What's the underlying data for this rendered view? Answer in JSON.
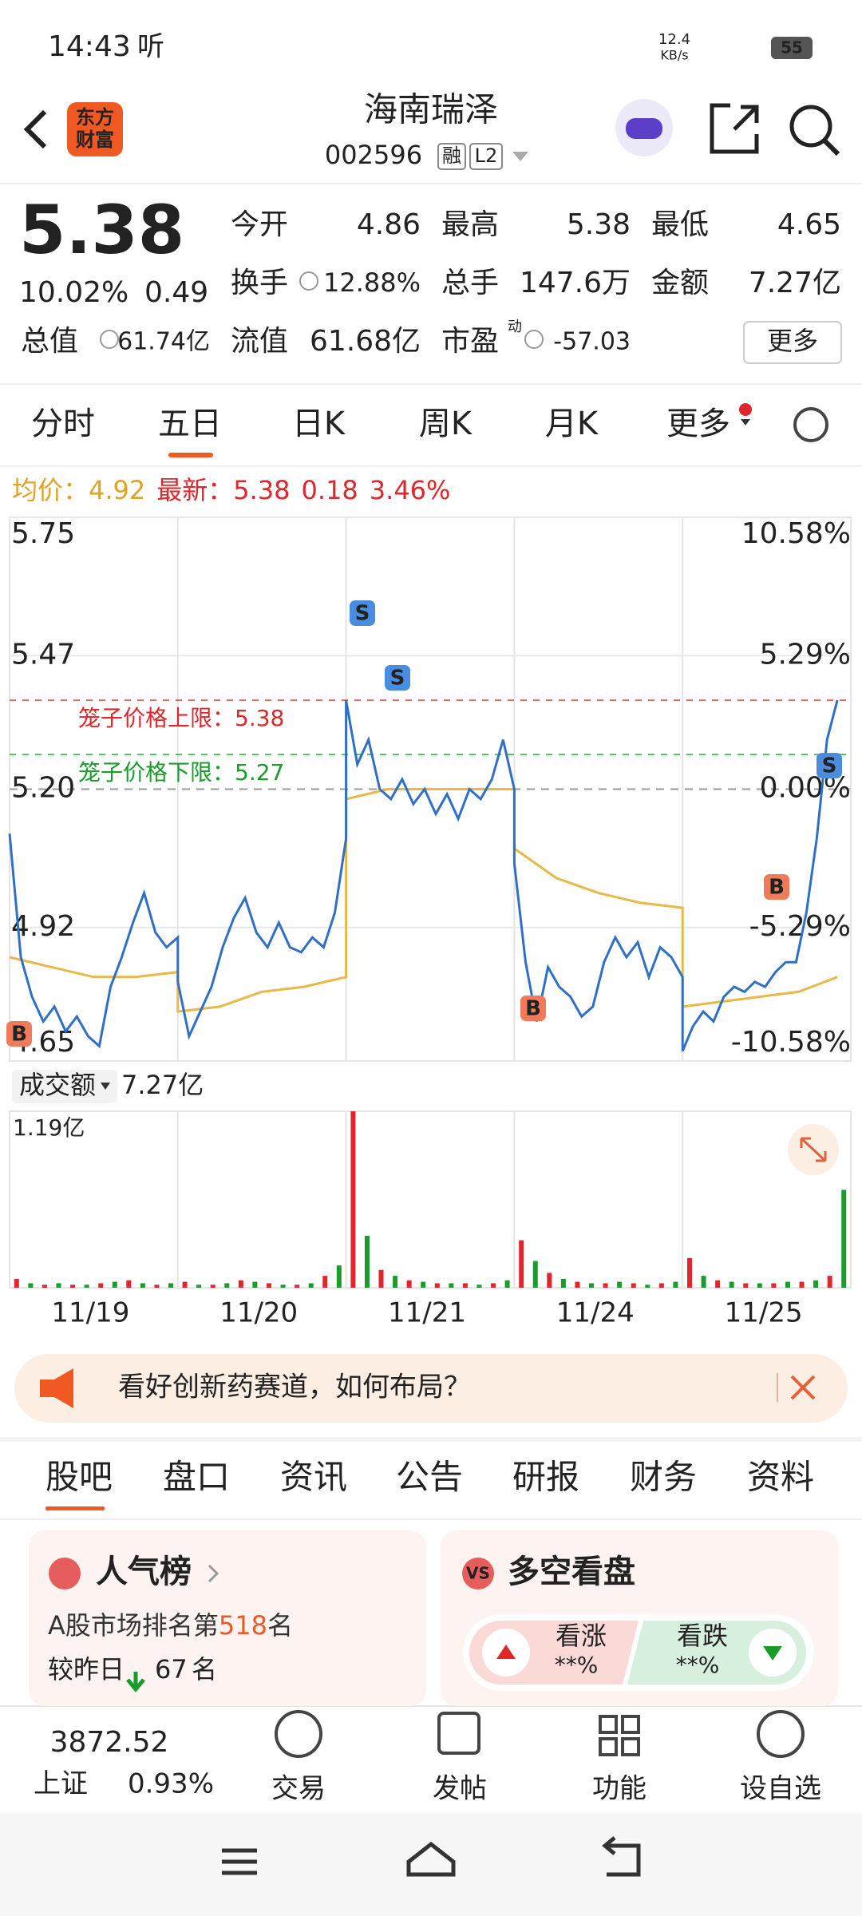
{
  "status_bar": {
    "time": "14:43",
    "app": "听",
    "net_speed": "12.4",
    "net_unit": "KB/s",
    "battery": "55"
  },
  "header": {
    "logo_line1": "东方",
    "logo_line2": "财富",
    "title": "海南瑞泽",
    "code": "002596",
    "badge1": "融",
    "badge2": "L2"
  },
  "quote": {
    "price": "5.38",
    "change_pct": "10.02%",
    "change": "0.49",
    "fields": [
      {
        "label": "今开",
        "value": "4.86"
      },
      {
        "label": "最高",
        "value": "5.38"
      },
      {
        "label": "最低",
        "value": "4.65"
      },
      {
        "label": "换手",
        "value": "12.88%"
      },
      {
        "label": "总手",
        "value": "147.6万"
      },
      {
        "label": "金额",
        "value": "7.27亿"
      },
      {
        "label": "总值",
        "value": "61.74亿"
      },
      {
        "label": "流值",
        "value": "61.68亿"
      },
      {
        "label": "市盈",
        "value": "-57.03"
      }
    ],
    "pe_sup": "动",
    "more": "更多"
  },
  "chart_tabs": [
    "分时",
    "五日",
    "日K",
    "周K",
    "月K",
    "更多"
  ],
  "active_chart_tab": 1,
  "legend": {
    "avg_label": "均价：",
    "avg": "4.92",
    "latest_label": "最新：",
    "latest": "5.38",
    "change": "0.18",
    "change_pct": "3.46%"
  },
  "price_chart": {
    "ylim": [
      4.65,
      5.75
    ],
    "yticks": [
      5.75,
      5.47,
      {
        "value": 5.2,
        "label": "5.20"
      },
      4.92,
      4.65
    ],
    "y2lim": [
      -10.58,
      10.58
    ],
    "y2ticks": [
      {
        "value": 10.58,
        "label": "10.58%"
      },
      {
        "value": 5.29,
        "label": "5.29%"
      },
      {
        "value": 0,
        "label": "0.00%"
      },
      {
        "value": -5.29,
        "label": "-5.29%"
      },
      {
        "value": -10.58,
        "label": "-10.58%"
      }
    ],
    "price_color": "#2f6fc4",
    "avg_color": "#e8b84a",
    "price": [
      [
        5.11,
        4.86,
        4.78,
        4.73,
        4.76,
        4.71,
        4.74,
        4.7,
        4.68,
        4.8,
        4.86,
        4.93,
        4.99,
        4.91,
        4.88,
        4.9
      ],
      [
        4.81,
        4.7,
        4.75,
        4.8,
        4.88,
        4.94,
        4.98,
        4.91,
        4.88,
        4.93,
        4.88,
        4.87,
        4.9,
        4.88,
        4.95,
        5.1
      ],
      [
        5.38,
        5.25,
        5.3,
        5.2,
        5.18,
        5.22,
        5.17,
        5.2,
        5.15,
        5.19,
        5.14,
        5.2,
        5.18,
        5.22,
        5.3,
        5.2
      ],
      [
        5.05,
        4.85,
        4.73,
        4.84,
        4.8,
        4.78,
        4.74,
        4.76,
        4.85,
        4.9,
        4.86,
        4.89,
        4.82,
        4.88,
        4.86,
        4.82
      ],
      [
        4.67,
        4.72,
        4.75,
        4.73,
        4.78,
        4.8,
        4.79,
        4.81,
        4.8,
        4.83,
        4.85,
        4.85,
        4.95,
        5.1,
        5.3,
        5.38
      ]
    ],
    "avg": [
      [
        4.86,
        4.84,
        4.82,
        4.82,
        4.83
      ],
      [
        4.75,
        4.76,
        4.79,
        4.8,
        4.82
      ],
      [
        5.18,
        5.2,
        5.2,
        5.2,
        5.2
      ],
      [
        5.08,
        5.02,
        4.99,
        4.97,
        4.96
      ],
      [
        4.76,
        4.77,
        4.78,
        4.79,
        4.82
      ]
    ],
    "cage_limits": [
      {
        "label": "笼子价格上限：",
        "value": 5.38
      },
      {
        "label": "笼子价格下限：",
        "value": 5.27
      }
    ],
    "trade_markers": [
      "S",
      "S",
      "S",
      "B",
      "B",
      "B"
    ]
  },
  "volume_chart": {
    "label": "成交额",
    "total": "7.27亿",
    "ylim": [
      0,
      1.19
    ],
    "yticks": [
      {
        "value": 1.19,
        "label": "1.19亿"
      }
    ],
    "x": [
      "11/19",
      "11/20",
      "11/21",
      "11/24",
      "11/25"
    ],
    "values": [
      [
        0.06,
        0.03,
        0.02,
        0.03,
        0.02,
        0.02,
        0.03,
        0.04,
        0.05,
        0.03,
        0.02,
        0.03
      ],
      [
        0.04,
        0.02,
        0.02,
        0.03,
        0.05,
        0.04,
        0.03,
        0.02,
        0.02,
        0.03,
        0.08,
        0.15
      ],
      [
        1.19,
        0.35,
        0.12,
        0.08,
        0.05,
        0.04,
        0.03,
        0.03,
        0.03,
        0.02,
        0.03,
        0.05
      ],
      [
        0.32,
        0.18,
        0.1,
        0.06,
        0.04,
        0.03,
        0.03,
        0.04,
        0.03,
        0.02,
        0.03,
        0.04
      ],
      [
        0.2,
        0.08,
        0.05,
        0.04,
        0.03,
        0.03,
        0.03,
        0.04,
        0.04,
        0.05,
        0.08,
        0.66
      ]
    ]
  },
  "banner": {
    "text": "看好创新药赛道，如何布局？"
  },
  "tabs": [
    "股吧",
    "盘口",
    "资讯",
    "公告",
    "研报",
    "财务",
    "资料"
  ],
  "cards": {
    "popularity": {
      "title": "人气榜",
      "rank_prefix": "A股市场排名第",
      "rank": "518",
      "rank_suffix": "名",
      "change_prefix": "较昨日",
      "change": "67",
      "change_suffix": "名"
    },
    "sentiment": {
      "icon": "VS",
      "title": "多空看盘",
      "bull": "看涨",
      "bull_pct": "**%",
      "bear": "看跌",
      "bear_pct": "**%"
    }
  },
  "bottom_nav": {
    "index_value": "3872.52",
    "index_name": "上证",
    "index_change": "0.93%",
    "items": [
      "交易",
      "发帖",
      "功能",
      "设自选"
    ]
  }
}
